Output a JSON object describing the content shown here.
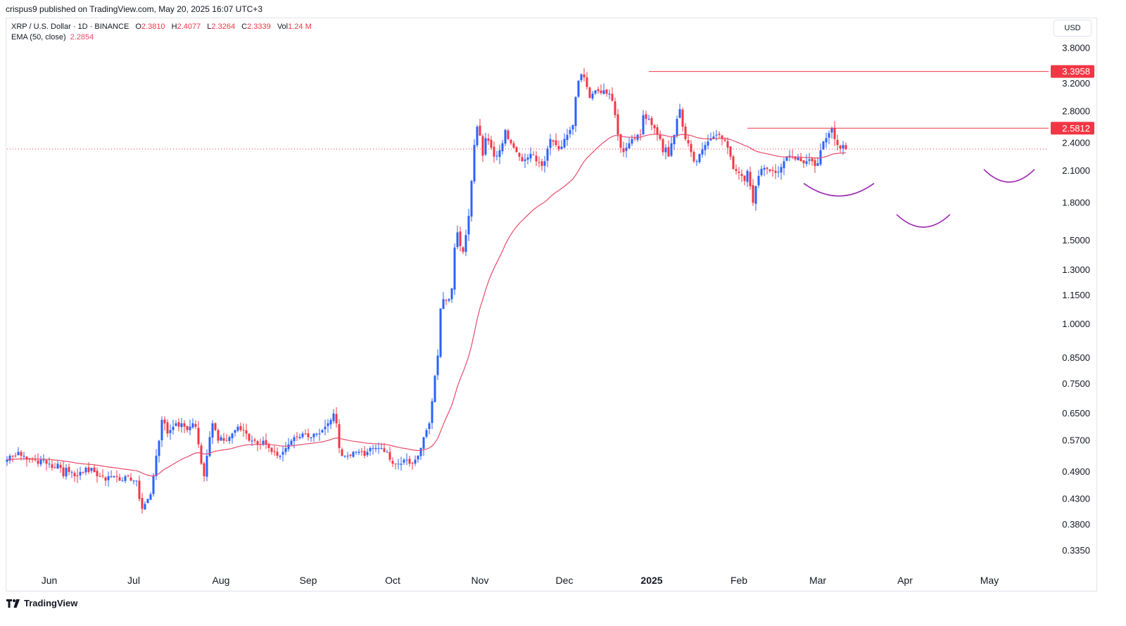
{
  "publish_line": "crispus9 published on TradingView.com, May 20, 2025 16:07 UTC+3",
  "legend": {
    "symbol": "XRP / U.S. Dollar · 1D · BINANCE",
    "open_label": "O",
    "open": "2.3810",
    "high_label": "H",
    "high": "2.4077",
    "low_label": "L",
    "low": "2.3264",
    "close_label": "C",
    "close": "2.3339",
    "vol_label": "Vol",
    "vol": "1.24 M",
    "ema_label": "EMA (50, close)",
    "ema_value": "2.2854"
  },
  "currency": "USD",
  "footer": {
    "brand": "TradingView",
    "logo_icon": "tradingview-logo-icon"
  },
  "colors": {
    "up": "#2962ff",
    "down": "#f23645",
    "ema": "#e84a6b",
    "level": "#f23645",
    "pattern": "#9c27b0",
    "grid_text": "#131722"
  },
  "chart_data": {
    "type": "candlestick",
    "symbol": "XRP / U.S. Dollar",
    "interval": "1D",
    "scale": "log",
    "ylim": [
      0.31,
      4.0
    ],
    "y_ticks": [
      "3.8000",
      "3.2000",
      "2.8000",
      "2.4000",
      "2.1000",
      "1.8000",
      "1.5000",
      "1.3000",
      "1.1500",
      "1.0000",
      "0.8500",
      "0.7500",
      "0.6500",
      "0.5700",
      "0.4900",
      "0.4300",
      "0.3800",
      "0.3350"
    ],
    "x_labels": [
      {
        "label": "Jun",
        "date": "2024-06-01",
        "bold": false
      },
      {
        "label": "Jul",
        "date": "2024-07-01",
        "bold": false
      },
      {
        "label": "Aug",
        "date": "2024-08-01",
        "bold": false
      },
      {
        "label": "Sep",
        "date": "2024-09-01",
        "bold": false
      },
      {
        "label": "Oct",
        "date": "2024-10-01",
        "bold": false
      },
      {
        "label": "Nov",
        "date": "2024-11-01",
        "bold": false
      },
      {
        "label": "Dec",
        "date": "2024-12-01",
        "bold": false
      },
      {
        "label": "2025",
        "date": "2025-01-01",
        "bold": true
      },
      {
        "label": "Feb",
        "date": "2025-02-01",
        "bold": false
      },
      {
        "label": "Mar",
        "date": "2025-03-01",
        "bold": false
      },
      {
        "label": "Apr",
        "date": "2025-04-01",
        "bold": false
      },
      {
        "label": "May",
        "date": "2025-05-01",
        "bold": false
      }
    ],
    "series_start_date": "2024-05-17",
    "closes": [
      0.52,
      0.53,
      0.53,
      0.53,
      0.54,
      0.53,
      0.53,
      0.52,
      0.52,
      0.52,
      0.52,
      0.51,
      0.52,
      0.52,
      0.51,
      0.51,
      0.5,
      0.5,
      0.51,
      0.5,
      0.48,
      0.5,
      0.49,
      0.49,
      0.48,
      0.48,
      0.49,
      0.49,
      0.5,
      0.49,
      0.5,
      0.49,
      0.48,
      0.48,
      0.48,
      0.47,
      0.48,
      0.48,
      0.48,
      0.48,
      0.47,
      0.47,
      0.48,
      0.48,
      0.47,
      0.47,
      0.47,
      0.43,
      0.41,
      0.42,
      0.43,
      0.44,
      0.48,
      0.53,
      0.57,
      0.63,
      0.62,
      0.59,
      0.6,
      0.61,
      0.62,
      0.61,
      0.62,
      0.61,
      0.6,
      0.61,
      0.62,
      0.61,
      0.56,
      0.51,
      0.48,
      0.53,
      0.58,
      0.62,
      0.6,
      0.57,
      0.58,
      0.57,
      0.57,
      0.58,
      0.59,
      0.6,
      0.61,
      0.6,
      0.6,
      0.59,
      0.57,
      0.57,
      0.57,
      0.56,
      0.56,
      0.57,
      0.56,
      0.55,
      0.54,
      0.54,
      0.53,
      0.53,
      0.54,
      0.55,
      0.56,
      0.57,
      0.58,
      0.58,
      0.58,
      0.59,
      0.59,
      0.58,
      0.58,
      0.59,
      0.59,
      0.59,
      0.6,
      0.61,
      0.62,
      0.63,
      0.65,
      0.62,
      0.55,
      0.53,
      0.53,
      0.53,
      0.53,
      0.54,
      0.54,
      0.54,
      0.54,
      0.53,
      0.54,
      0.55,
      0.55,
      0.55,
      0.55,
      0.55,
      0.54,
      0.54,
      0.52,
      0.51,
      0.51,
      0.51,
      0.51,
      0.52,
      0.52,
      0.51,
      0.51,
      0.52,
      0.53,
      0.55,
      0.58,
      0.6,
      0.62,
      0.69,
      0.78,
      0.86,
      1.08,
      1.13,
      1.12,
      1.13,
      1.19,
      1.45,
      1.56,
      1.46,
      1.42,
      1.54,
      1.69,
      2.0,
      2.38,
      2.6,
      2.49,
      2.26,
      2.46,
      2.43,
      2.35,
      2.25,
      2.26,
      2.32,
      2.4,
      2.56,
      2.45,
      2.4,
      2.35,
      2.3,
      2.25,
      2.2,
      2.22,
      2.24,
      2.28,
      2.27,
      2.2,
      2.19,
      2.15,
      2.2,
      2.34,
      2.45,
      2.42,
      2.38,
      2.33,
      2.36,
      2.45,
      2.5,
      2.56,
      2.62,
      3.0,
      3.25,
      3.35,
      3.3,
      3.15,
      2.99,
      3.05,
      3.1,
      3.09,
      3.06,
      3.1,
      3.05,
      3.05,
      2.95,
      2.75,
      2.5,
      2.35,
      2.3,
      2.35,
      2.4,
      2.45,
      2.45,
      2.5,
      2.5,
      2.75,
      2.7,
      2.7,
      2.62,
      2.58,
      2.5,
      2.45,
      2.3,
      2.35,
      2.25,
      2.4,
      2.5,
      2.7,
      2.83,
      2.6,
      2.45,
      2.4,
      2.3,
      2.2,
      2.2,
      2.28,
      2.33,
      2.38,
      2.42,
      2.45,
      2.48,
      2.5,
      2.5,
      2.45,
      2.43,
      2.35,
      2.25,
      2.12,
      2.1,
      2.08,
      2.05,
      2.0,
      2.1,
      1.95,
      1.8,
      1.95,
      2.05,
      2.12,
      2.13,
      2.12,
      2.1,
      2.1,
      2.08,
      2.09,
      2.14,
      2.2,
      2.25,
      2.26,
      2.24,
      2.22,
      2.24,
      2.2,
      2.18,
      2.2,
      2.22,
      2.2,
      2.15,
      2.18,
      2.32,
      2.42,
      2.46,
      2.52,
      2.58,
      2.45,
      2.38,
      2.34,
      2.38,
      2.33
    ],
    "ema_period": 50,
    "ema_last": 2.2854,
    "horizontal_levels": [
      {
        "value": 3.3958,
        "label": "3.3958",
        "start_date": "2024-12-31"
      },
      {
        "value": 2.5812,
        "label": "2.5812",
        "start_date": "2025-02-04"
      }
    ],
    "last_price": 2.3339,
    "pattern": {
      "name": "inverse head and shoulders",
      "arcs": [
        {
          "part": "left shoulder",
          "from": "2025-02-24",
          "to": "2025-03-21",
          "level": 1.86
        },
        {
          "part": "head",
          "from": "2025-03-29",
          "to": "2025-04-17",
          "level": 1.6
        },
        {
          "part": "right shoulder",
          "from": "2025-04-29",
          "to": "2025-05-17",
          "level": 1.99
        }
      ]
    }
  }
}
